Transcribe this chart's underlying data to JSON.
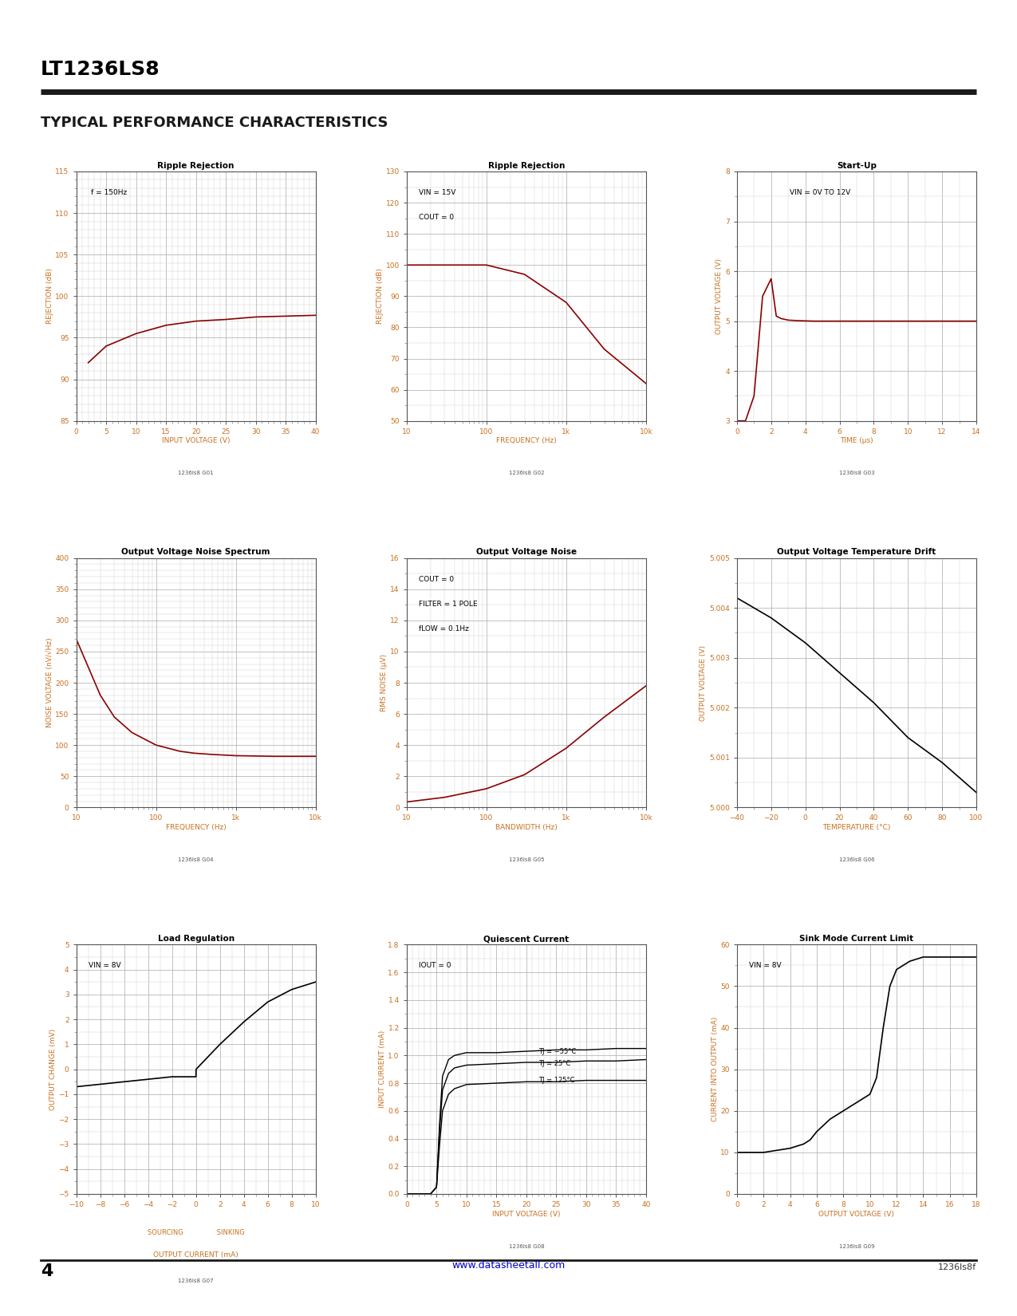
{
  "page_title": "LT1236LS8",
  "section_title": "TYPICAL PERFORMANCE CHARACTERISTICS",
  "bg_color": "#ffffff",
  "dark_red": "#8b0000",
  "black": "#000000",
  "tick_color": "#c87020",
  "grid_major_color": "#999999",
  "grid_minor_color": "#cccccc",
  "footer_text": "4",
  "footer_url": "www.datasheetall.com",
  "footer_code": "1236ls8f",
  "g01": {
    "title": "Ripple Rejection",
    "xlabel": "INPUT VOLTAGE (V)",
    "ylabel": "REJECTION (dB)",
    "annotation": "f = 150Hz",
    "xlim": [
      0,
      40
    ],
    "ylim": [
      85,
      115
    ],
    "xticks": [
      0,
      5,
      10,
      15,
      20,
      25,
      30,
      35,
      40
    ],
    "yticks": [
      85,
      90,
      95,
      100,
      105,
      110,
      115
    ],
    "code": "1236ls8 G01",
    "x": [
      2,
      5,
      10,
      15,
      20,
      25,
      30,
      35,
      40
    ],
    "y": [
      92,
      94,
      95.5,
      96.5,
      97,
      97.2,
      97.5,
      97.6,
      97.7
    ],
    "curve_color": "dark_red"
  },
  "g02": {
    "title": "Ripple Rejection",
    "xlabel": "FREQUENCY (Hz)",
    "ylabel": "REJECTION (dB)",
    "annotation1": "VIN = 15V",
    "annotation2": "COUT = 0",
    "xlog": true,
    "xlim": [
      10,
      10000
    ],
    "ylim": [
      50,
      130
    ],
    "yticks": [
      50,
      60,
      70,
      80,
      90,
      100,
      110,
      120,
      130
    ],
    "xtick_vals": [
      10,
      100,
      1000,
      10000
    ],
    "xtick_labels": [
      "10",
      "100",
      "1k",
      "10k"
    ],
    "code": "1236ls8 G02",
    "x": [
      10,
      30,
      100,
      300,
      1000,
      3000,
      10000
    ],
    "y": [
      100,
      100,
      100,
      97,
      88,
      73,
      62
    ],
    "curve_color": "dark_red"
  },
  "g03": {
    "title": "Start-Up",
    "xlabel": "TIME (μs)",
    "ylabel": "OUTPUT VOLTAGE (V)",
    "annotation": "VIN = 0V TO 12V",
    "xlim": [
      0,
      14
    ],
    "ylim": [
      3,
      8
    ],
    "xticks": [
      0,
      2,
      4,
      6,
      8,
      10,
      12,
      14
    ],
    "yticks": [
      3,
      4,
      5,
      6,
      7,
      8
    ],
    "code": "1236ls8 G03",
    "x": [
      0,
      0.5,
      1.0,
      1.5,
      2.0,
      2.3,
      2.6,
      3.0,
      3.5,
      4.5,
      6.0,
      8.0,
      10.0,
      12.0,
      14.0
    ],
    "y": [
      3.0,
      3.0,
      3.5,
      5.5,
      5.85,
      5.1,
      5.05,
      5.02,
      5.01,
      5.0,
      5.0,
      5.0,
      5.0,
      5.0,
      5.0
    ],
    "curve_color": "dark_red"
  },
  "g04": {
    "title": "Output Voltage Noise Spectrum",
    "xlabel": "FREQUENCY (Hz)",
    "ylabel": "NOISE VOLTAGE (nV/√Hz)",
    "xlog": true,
    "xlim": [
      10,
      10000
    ],
    "ylim": [
      0,
      400
    ],
    "yticks": [
      0,
      50,
      100,
      150,
      200,
      250,
      300,
      350,
      400
    ],
    "xtick_vals": [
      10,
      100,
      1000,
      10000
    ],
    "xtick_labels": [
      "10",
      "100",
      "1k",
      "10k"
    ],
    "code": "1236ls8 G04",
    "x": [
      10,
      20,
      30,
      50,
      100,
      200,
      300,
      500,
      1000,
      3000,
      10000
    ],
    "y": [
      270,
      180,
      145,
      120,
      100,
      90,
      87,
      85,
      83,
      82,
      82
    ],
    "curve_color": "dark_red"
  },
  "g05": {
    "title": "Output Voltage Noise",
    "xlabel": "BANDWIDTH (Hz)",
    "ylabel": "RMS NOISE (μV)",
    "annotation1": "COUT = 0",
    "annotation2": "FILTER = 1 POLE",
    "annotation3": "fLOW = 0.1Hz",
    "xlog": true,
    "xlim": [
      10,
      10000
    ],
    "ylim": [
      0,
      16
    ],
    "yticks": [
      0,
      2,
      4,
      6,
      8,
      10,
      12,
      14,
      16
    ],
    "xtick_vals": [
      10,
      100,
      1000,
      10000
    ],
    "xtick_labels": [
      "10",
      "100",
      "1k",
      "10k"
    ],
    "code": "1236ls8 G05",
    "x": [
      10,
      30,
      100,
      300,
      1000,
      3000,
      10000
    ],
    "y": [
      0.35,
      0.65,
      1.2,
      2.1,
      3.8,
      5.8,
      7.8
    ],
    "curve_color": "dark_red"
  },
  "g06": {
    "title": "Output Voltage Temperature Drift",
    "xlabel": "TEMPERATURE (°C)",
    "ylabel": "OUTPUT VOLTAGE (V)",
    "xlim": [
      -40,
      100
    ],
    "ylim": [
      5.0,
      5.005
    ],
    "xticks": [
      -40,
      -20,
      0,
      20,
      40,
      60,
      80,
      100
    ],
    "yticks": [
      5.0,
      5.001,
      5.002,
      5.003,
      5.004,
      5.005
    ],
    "code": "1236ls8 G06",
    "x": [
      -40,
      -20,
      0,
      20,
      40,
      60,
      80,
      100
    ],
    "y": [
      5.0042,
      5.0038,
      5.0033,
      5.0027,
      5.0021,
      5.0014,
      5.0009,
      5.0003
    ],
    "curve_color": "black"
  },
  "g07": {
    "title": "Load Regulation",
    "xlabel": "OUTPUT CURRENT (mA)",
    "xlabel2": "SOURCING                SINKING",
    "ylabel": "OUTPUT CHANGE (mV)",
    "annotation": "VIN = 8V",
    "xlim": [
      -10,
      10
    ],
    "ylim": [
      -5,
      5
    ],
    "xticks": [
      -10,
      -8,
      -6,
      -4,
      -2,
      0,
      2,
      4,
      6,
      8,
      10
    ],
    "yticks": [
      -5,
      -4,
      -3,
      -2,
      -1,
      0,
      1,
      2,
      3,
      4,
      5
    ],
    "code": "1236ls8 G07",
    "x": [
      -10,
      -8,
      -6,
      -4,
      -2,
      0,
      0.01,
      2,
      4,
      6,
      8,
      10
    ],
    "y": [
      -0.7,
      -0.6,
      -0.5,
      -0.4,
      -0.3,
      -0.3,
      0.0,
      1.0,
      1.9,
      2.7,
      3.2,
      3.5
    ],
    "curve_color": "black"
  },
  "g08": {
    "title": "Quiescent Current",
    "xlabel": "INPUT VOLTAGE (V)",
    "ylabel": "INPUT CURRENT (mA)",
    "annotation": "IOUT = 0",
    "xlim": [
      0,
      40
    ],
    "ylim": [
      0,
      1.8
    ],
    "xticks": [
      0,
      5,
      10,
      15,
      20,
      25,
      30,
      35,
      40
    ],
    "yticks": [
      0,
      0.2,
      0.4,
      0.6,
      0.8,
      1.0,
      1.2,
      1.4,
      1.6,
      1.8
    ],
    "code": "1236ls8 G08",
    "curves": [
      {
        "label": "TJ = −55°C",
        "x": [
          0,
          1,
          2,
          3,
          4,
          5,
          5.5,
          6,
          7,
          8,
          10,
          15,
          20,
          25,
          30,
          35,
          40
        ],
        "y": [
          0,
          0,
          0,
          0,
          0,
          0.05,
          0.5,
          0.85,
          0.97,
          1.0,
          1.02,
          1.02,
          1.03,
          1.04,
          1.04,
          1.05,
          1.05
        ]
      },
      {
        "label": "TJ = 25°C",
        "x": [
          0,
          1,
          2,
          3,
          4,
          5,
          5.5,
          6,
          7,
          8,
          10,
          15,
          20,
          25,
          30,
          35,
          40
        ],
        "y": [
          0,
          0,
          0,
          0,
          0,
          0.05,
          0.45,
          0.75,
          0.87,
          0.91,
          0.93,
          0.94,
          0.95,
          0.95,
          0.96,
          0.96,
          0.97
        ]
      },
      {
        "label": "TJ = 125°C",
        "x": [
          0,
          1,
          2,
          3,
          4,
          5,
          5.5,
          6,
          7,
          8,
          10,
          15,
          20,
          25,
          30,
          35,
          40
        ],
        "y": [
          0,
          0,
          0,
          0,
          0,
          0.05,
          0.35,
          0.6,
          0.72,
          0.76,
          0.79,
          0.8,
          0.81,
          0.81,
          0.82,
          0.82,
          0.82
        ]
      }
    ],
    "curve_color": "black"
  },
  "g09": {
    "title": "Sink Mode Current Limit",
    "xlabel": "OUTPUT VOLTAGE (V)",
    "ylabel": "CURRENT INTO OUTPUT (mA)",
    "annotation": "VIN = 8V",
    "xlim": [
      0,
      18
    ],
    "ylim": [
      0,
      60
    ],
    "xticks": [
      0,
      2,
      4,
      6,
      8,
      10,
      12,
      14,
      16,
      18
    ],
    "yticks": [
      0,
      10,
      20,
      30,
      40,
      50,
      60
    ],
    "code": "1236ls8 G09",
    "x": [
      0,
      2,
      4,
      5,
      5.5,
      6,
      7,
      8,
      9,
      10,
      10.5,
      11,
      11.5,
      12,
      13,
      14,
      15,
      16,
      17,
      18
    ],
    "y": [
      10,
      10,
      11,
      12,
      13,
      15,
      18,
      20,
      22,
      24,
      28,
      40,
      50,
      54,
      56,
      57,
      57,
      57,
      57,
      57
    ],
    "curve_color": "black"
  }
}
